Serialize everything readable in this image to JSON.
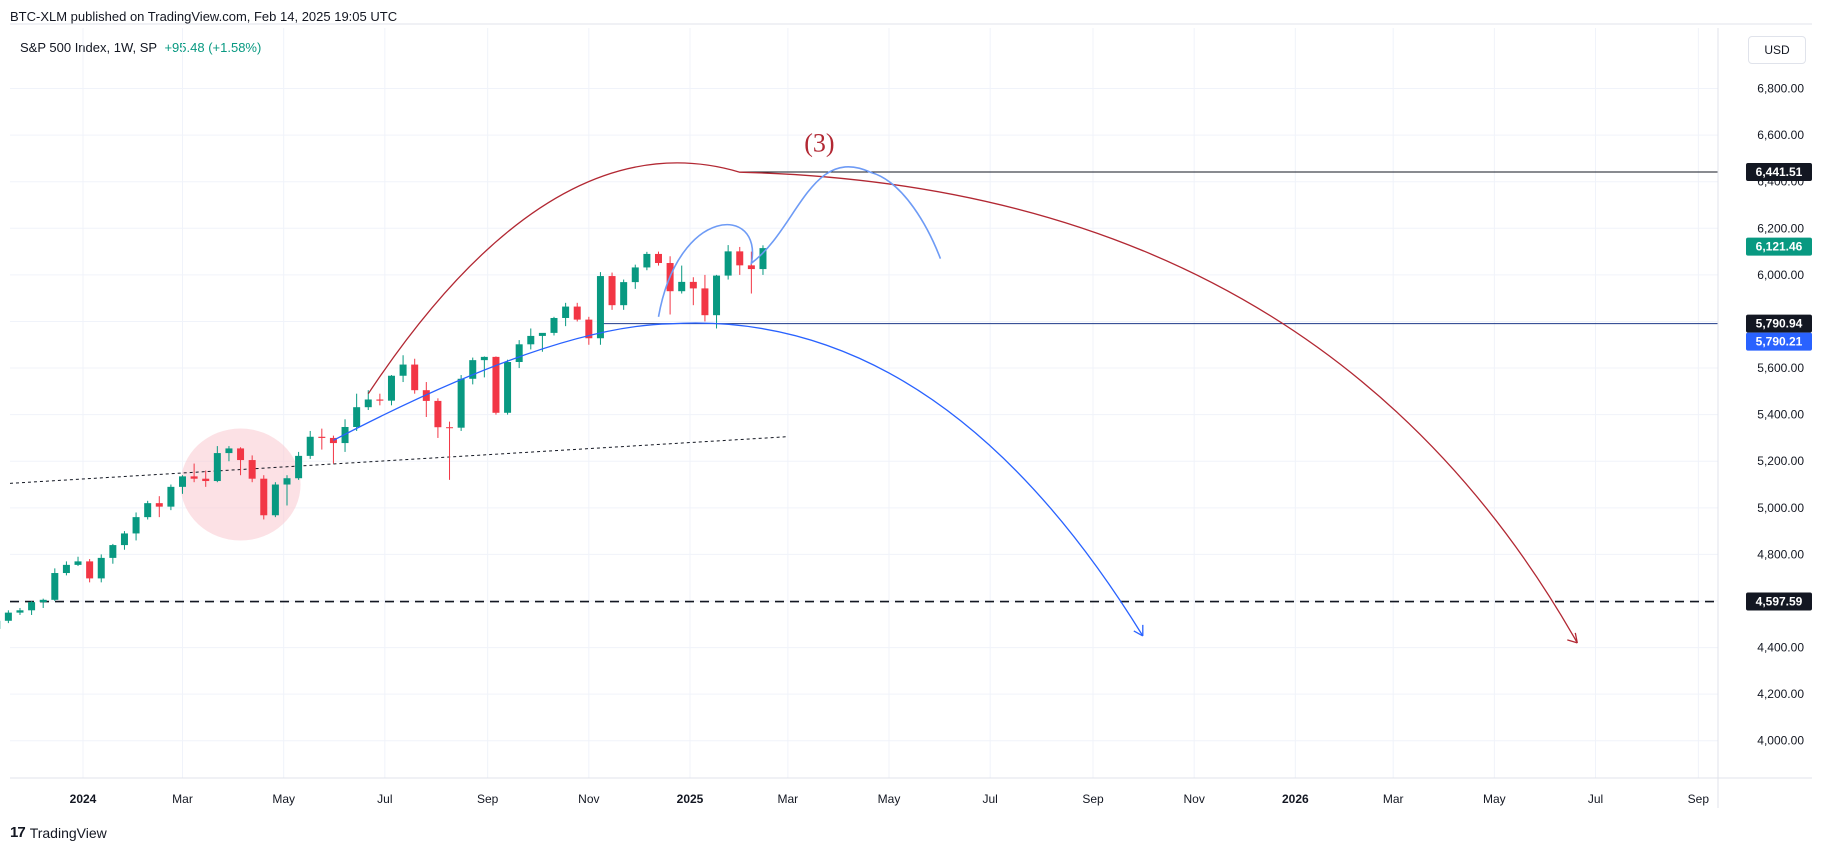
{
  "header": {
    "published_line": "BTC-XLM published on TradingView.com, Feb 14, 2025 19:05 UTC",
    "symbol_info": "S&P 500 Index, 1W, SP",
    "change": "+95.48 (+1.58%)",
    "currency": "USD"
  },
  "footer": {
    "brand": "TradingView",
    "logo_glyph": "17"
  },
  "colors": {
    "up": "#089981",
    "down": "#f23645",
    "blue": "#2962ff",
    "light_blue": "#6e9bf5",
    "red_arc": "#b22833",
    "highlight": "#f9c9cf"
  },
  "chart_data": {
    "type": "candlestick",
    "y_axis": {
      "ylim": [
        3840,
        7060
      ],
      "ticks": [
        4000,
        4200,
        4400,
        4600,
        4800,
        5000,
        5200,
        5400,
        5600,
        5800,
        6000,
        6200,
        6400,
        6600,
        6800
      ],
      "tick_labels": [
        "4,000.00",
        "4,200.00",
        "4,400.00",
        "4,600.00",
        "4,800.00",
        "5,000.00",
        "5,200.00",
        "5,400.00",
        "5,600.00",
        "5,800.00",
        "6,000.00",
        "6,200.00",
        "6,400.00",
        "6,600.00",
        "6,800.00"
      ]
    },
    "x_axis": {
      "ticks": [
        "2024-01",
        "2024-03",
        "2024-05",
        "2024-07",
        "2024-09",
        "2024-11",
        "2025-01",
        "2025-03",
        "2025-05",
        "2025-07",
        "2025-09",
        "2025-11",
        "2026-01",
        "2026-03",
        "2026-05",
        "2026-07",
        "2026-09"
      ],
      "tick_labels": [
        "2024",
        "Mar",
        "May",
        "Jul",
        "Sep",
        "Nov",
        "2025",
        "Mar",
        "May",
        "Jul",
        "Sep",
        "Nov",
        "2026",
        "Mar",
        "May",
        "Jul",
        "Sep"
      ],
      "bold_labels": [
        "2024",
        "2025",
        "2026"
      ]
    },
    "candles": [
      [
        "2023-11-10",
        4480,
        4525,
        4460,
        4515
      ],
      [
        "2023-11-17",
        4515,
        4560,
        4505,
        4550
      ],
      [
        "2023-11-24",
        4550,
        4570,
        4540,
        4560
      ],
      [
        "2023-12-01",
        4560,
        4600,
        4540,
        4595
      ],
      [
        "2023-12-08",
        4595,
        4610,
        4570,
        4605
      ],
      [
        "2023-12-15",
        4605,
        4740,
        4600,
        4720
      ],
      [
        "2023-12-22",
        4720,
        4770,
        4710,
        4755
      ],
      [
        "2023-12-29",
        4755,
        4790,
        4750,
        4770
      ],
      [
        "2024-01-05",
        4770,
        4780,
        4680,
        4697
      ],
      [
        "2024-01-12",
        4697,
        4800,
        4680,
        4785
      ],
      [
        "2024-01-19",
        4785,
        4845,
        4760,
        4840
      ],
      [
        "2024-01-26",
        4840,
        4900,
        4820,
        4890
      ],
      [
        "2024-02-02",
        4890,
        4980,
        4860,
        4960
      ],
      [
        "2024-02-09",
        4960,
        5030,
        4950,
        5020
      ],
      [
        "2024-02-16",
        5020,
        5050,
        4960,
        5005
      ],
      [
        "2024-02-23",
        5005,
        5100,
        4990,
        5090
      ],
      [
        "2024-03-01",
        5090,
        5140,
        5060,
        5135
      ],
      [
        "2024-03-08",
        5135,
        5190,
        5110,
        5125
      ],
      [
        "2024-03-15",
        5125,
        5160,
        5090,
        5115
      ],
      [
        "2024-03-22",
        5115,
        5265,
        5110,
        5235
      ],
      [
        "2024-03-29",
        5235,
        5265,
        5200,
        5255
      ],
      [
        "2024-04-05",
        5255,
        5260,
        5140,
        5205
      ],
      [
        "2024-04-12",
        5205,
        5225,
        5110,
        5125
      ],
      [
        "2024-04-19",
        5125,
        5140,
        4950,
        4968
      ],
      [
        "2024-04-26",
        4968,
        5110,
        4960,
        5100
      ],
      [
        "2024-05-03",
        5100,
        5140,
        5010,
        5127
      ],
      [
        "2024-05-10",
        5127,
        5240,
        5120,
        5223
      ],
      [
        "2024-05-17",
        5223,
        5330,
        5210,
        5305
      ],
      [
        "2024-05-24",
        5305,
        5340,
        5250,
        5300
      ],
      [
        "2024-05-31",
        5300,
        5310,
        5190,
        5278
      ],
      [
        "2024-06-07",
        5278,
        5380,
        5240,
        5347
      ],
      [
        "2024-06-14",
        5347,
        5490,
        5330,
        5432
      ],
      [
        "2024-06-21",
        5432,
        5505,
        5420,
        5465
      ],
      [
        "2024-06-28",
        5465,
        5490,
        5440,
        5460
      ],
      [
        "2024-07-05",
        5460,
        5570,
        5440,
        5567
      ],
      [
        "2024-07-12",
        5567,
        5655,
        5540,
        5615
      ],
      [
        "2024-07-19",
        5615,
        5640,
        5490,
        5505
      ],
      [
        "2024-07-26",
        5505,
        5540,
        5390,
        5459
      ],
      [
        "2024-08-02",
        5459,
        5470,
        5300,
        5346
      ],
      [
        "2024-08-09",
        5346,
        5370,
        5120,
        5344
      ],
      [
        "2024-08-16",
        5344,
        5570,
        5330,
        5554
      ],
      [
        "2024-08-23",
        5554,
        5645,
        5530,
        5634
      ],
      [
        "2024-08-30",
        5634,
        5650,
        5560,
        5648
      ],
      [
        "2024-09-06",
        5648,
        5650,
        5400,
        5408
      ],
      [
        "2024-09-13",
        5408,
        5636,
        5400,
        5626
      ],
      [
        "2024-09-20",
        5626,
        5720,
        5600,
        5702
      ],
      [
        "2024-09-27",
        5702,
        5770,
        5680,
        5738
      ],
      [
        "2024-10-04",
        5738,
        5750,
        5670,
        5751
      ],
      [
        "2024-10-11",
        5751,
        5820,
        5740,
        5815
      ],
      [
        "2024-10-18",
        5815,
        5880,
        5780,
        5864
      ],
      [
        "2024-10-25",
        5864,
        5880,
        5800,
        5808
      ],
      [
        "2024-11-01",
        5808,
        5820,
        5700,
        5728
      ],
      [
        "2024-11-08",
        5728,
        6012,
        5700,
        5995
      ],
      [
        "2024-11-15",
        5995,
        6010,
        5850,
        5870
      ],
      [
        "2024-11-22",
        5870,
        5980,
        5850,
        5969
      ],
      [
        "2024-11-29",
        5969,
        6044,
        5940,
        6032
      ],
      [
        "2024-12-06",
        6032,
        6099,
        6020,
        6090
      ],
      [
        "2024-12-13",
        6090,
        6100,
        6040,
        6051
      ],
      [
        "2024-12-20",
        6051,
        6080,
        5830,
        5930
      ],
      [
        "2024-12-27",
        5930,
        6040,
        5920,
        5970
      ],
      [
        "2025-01-03",
        5970,
        5990,
        5870,
        5942
      ],
      [
        "2025-01-10",
        5942,
        6000,
        5800,
        5827
      ],
      [
        "2025-01-17",
        5827,
        6000,
        5770,
        5997
      ],
      [
        "2025-01-24",
        5997,
        6128,
        5980,
        6101
      ],
      [
        "2025-01-31",
        6101,
        6120,
        6000,
        6041
      ],
      [
        "2025-02-07",
        6041,
        6100,
        5920,
        6025
      ],
      [
        "2025-02-14",
        6025,
        6127,
        6000,
        6115
      ]
    ],
    "price_labels": [
      {
        "value": 6441.51,
        "label": "6,441.51",
        "color": "#131722"
      },
      {
        "value": 6121.46,
        "label": "6,121.46",
        "color": "#089981"
      },
      {
        "value": 5790.94,
        "label": "5,790.94",
        "color": "#131722"
      },
      {
        "value": 5790.21,
        "label": "5,790.21",
        "color": "#2962ff"
      },
      {
        "value": 4597.59,
        "label": "4,597.59",
        "color": "#131722"
      }
    ],
    "annotations": {
      "wave_label": "(3)",
      "resistance": 6441.51,
      "support": 5790.94,
      "dashed_level": 4597.59
    }
  }
}
